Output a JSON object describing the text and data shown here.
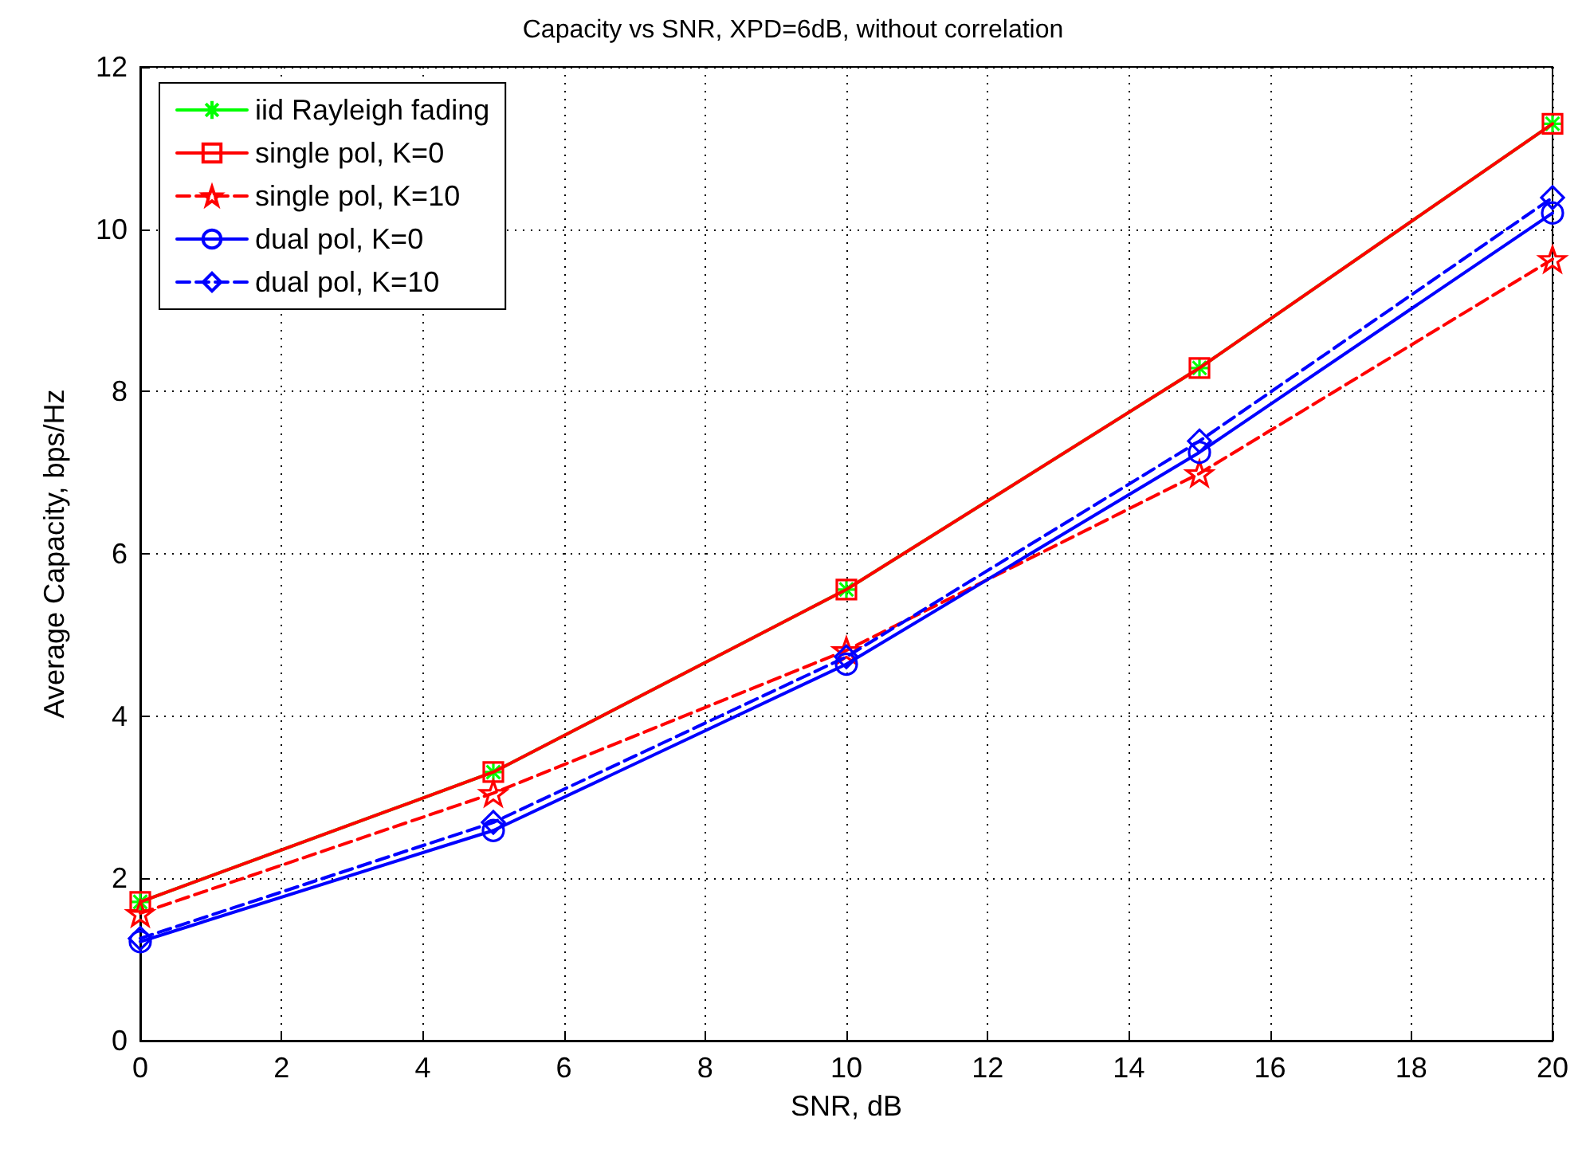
{
  "chart_data": {
    "type": "line",
    "title": "Capacity vs SNR, XPD=6dB, without correlation",
    "xlabel": "SNR, dB",
    "ylabel": "Average Capacity, bps/Hz",
    "x": [
      0,
      5,
      10,
      15,
      20
    ],
    "xlim": [
      0,
      20
    ],
    "xticks": [
      0,
      2,
      4,
      6,
      8,
      10,
      12,
      14,
      16,
      18,
      20
    ],
    "ylim": [
      0,
      12
    ],
    "yticks": [
      0,
      2,
      4,
      6,
      8,
      10,
      12
    ],
    "grid": true,
    "legend": "top left",
    "series": [
      {
        "name": "iid Rayleigh fading",
        "color": "#00ff00",
        "marker": "cross",
        "line_style": "solid",
        "values": [
          1.71,
          3.31,
          5.56,
          8.29,
          11.3
        ]
      },
      {
        "name": "single pol, K=0",
        "color": "#ff0000",
        "marker": "square",
        "line_style": "solid",
        "values": [
          1.71,
          3.31,
          5.56,
          8.29,
          11.3
        ]
      },
      {
        "name": "single pol, K=10",
        "color": "#ff0000",
        "marker": "star",
        "line_style": "dashed",
        "values": [
          1.57,
          3.05,
          4.81,
          6.99,
          9.63
        ]
      },
      {
        "name": "dual pol, K=0",
        "color": "#0000ff",
        "marker": "circle",
        "line_style": "solid",
        "values": [
          1.22,
          2.59,
          4.64,
          7.25,
          10.2
        ]
      },
      {
        "name": "dual pol, K=10",
        "color": "#0000ff",
        "marker": "diamond",
        "line_style": "dashed",
        "values": [
          1.26,
          2.69,
          4.73,
          7.39,
          10.39
        ]
      }
    ]
  }
}
